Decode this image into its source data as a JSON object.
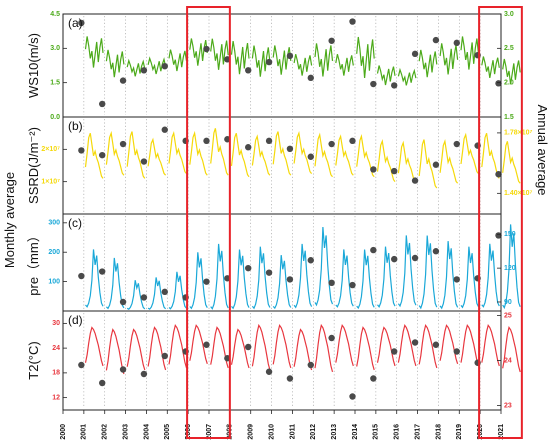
{
  "figure": {
    "left_label": "Monthly average",
    "right_label": "Annual average"
  },
  "chart_data": {
    "type": "line",
    "x_axis": {
      "ticks": [
        "2000",
        "2001",
        "2002",
        "2003",
        "2004",
        "2005",
        "2006",
        "2007",
        "2008",
        "2009",
        "2010",
        "2011",
        "2012",
        "2013",
        "2014",
        "2015",
        "2016",
        "2017",
        "2018",
        "2019",
        "2020",
        "2021"
      ],
      "range": [
        2000,
        2021
      ]
    },
    "highlight_years": [
      2006,
      2020
    ],
    "highlight_color": "#e8222a",
    "grid": "vertical dotted lines at each year",
    "panels": [
      {
        "label": "(a)",
        "ylabel": "WS10(m/s)",
        "color": "#4caa1a",
        "left_ticks": [
          "0.0",
          "1.5",
          "3.0",
          "4.5"
        ],
        "left_range": [
          0,
          4.5
        ],
        "right_ticks": [
          "1.5",
          "2.0",
          "2.5",
          "3.0"
        ],
        "right_range": [
          1.5,
          3.0
        ],
        "annual": [
          2.87,
          1.69,
          2.03,
          2.18,
          2.24,
          3.29,
          2.49,
          2.34,
          2.18,
          2.3,
          2.39,
          2.07,
          2.61,
          2.89,
          1.98,
          1.96,
          2.42,
          2.62,
          2.58,
          2.4,
          1.99
        ],
        "monthly_low": [
          2.0,
          1.6,
          1.7,
          1.8,
          1.9,
          2.1,
          1.9,
          1.7,
          1.6,
          1.7,
          1.7,
          1.6,
          1.7,
          1.5,
          1.3,
          1.3,
          1.6,
          1.7,
          1.9,
          1.6,
          1.3
        ],
        "monthly_high": [
          3.6,
          3.0,
          2.5,
          2.6,
          3.0,
          3.5,
          3.5,
          3.4,
          3.2,
          3.2,
          2.8,
          3.3,
          2.8,
          3.6,
          2.3,
          2.1,
          3.0,
          3.3,
          3.6,
          2.7,
          2.6
        ]
      },
      {
        "label": "(b)",
        "ylabel": "SSRD(J/m⁻²)",
        "color": "#f5d90a",
        "left_ticks": [
          "1×10⁷",
          "2×10⁷"
        ],
        "left_range": [
          0,
          30000000
        ],
        "right_ticks": [
          "1.40×10⁷",
          "1.78×10⁷"
        ],
        "right_range": [
          12700000,
          18800000
        ],
        "annual": [
          16700000,
          16400000,
          17100000,
          16000000,
          18000000,
          17300000,
          17300000,
          17400000,
          16900000,
          17300000,
          16800000,
          16300000,
          17100000,
          17300000,
          15500000,
          15400000,
          14800000,
          15800000,
          17100000,
          17000000,
          15200000
        ],
        "monthly_low": [
          11000000,
          12000000,
          11000000,
          12000000,
          12500000,
          12000000,
          12000000,
          11500000,
          12000000,
          12000000,
          12500000,
          11500000,
          12000000,
          11500000,
          10000000,
          9500000,
          8000000,
          9500000,
          12500000,
          11000000,
          9500000
        ],
        "monthly_high": [
          25000000,
          25000000,
          25500000,
          23000000,
          25000000,
          25000000,
          26500000,
          25000000,
          24000000,
          25500000,
          25000000,
          24500000,
          24000000,
          24000000,
          22500000,
          22000000,
          23000000,
          22500000,
          24500000,
          25000000,
          22500000
        ]
      },
      {
        "label": "(c)",
        "ylabel": "pre（mm）",
        "color": "#1aa8d8",
        "left_ticks": [
          "100",
          "200",
          "300"
        ],
        "left_range": [
          0,
          330
        ],
        "right_ticks": [
          "90",
          "120",
          "150"
        ],
        "right_range": [
          82,
          168
        ],
        "annual": [
          113,
          117,
          90,
          94,
          99,
          94,
          108,
          111,
          120,
          116,
          110,
          127,
          107,
          105,
          136,
          128,
          129,
          135,
          110,
          111,
          149
        ],
        "monthly_low": [
          10,
          5,
          4,
          4,
          5,
          5,
          3,
          5,
          5,
          6,
          8,
          15,
          10,
          6,
          10,
          12,
          5,
          5,
          8,
          10,
          5
        ],
        "monthly_high": [
          220,
          190,
          110,
          120,
          140,
          210,
          240,
          220,
          230,
          200,
          240,
          300,
          220,
          220,
          230,
          270,
          270,
          250,
          230,
          240,
          310
        ]
      },
      {
        "label": "(d)",
        "ylabel": "T2(°C)",
        "color": "#e8373f",
        "left_ticks": [
          "12",
          "18",
          "24",
          "30"
        ],
        "left_range": [
          9,
          33
        ],
        "right_ticks": [
          "23",
          "24",
          "25"
        ],
        "right_range": [
          22.9,
          25.1
        ],
        "annual": [
          23.9,
          23.5,
          23.8,
          23.7,
          24.1,
          24.2,
          24.35,
          24.05,
          24.3,
          23.75,
          23.6,
          23.9,
          24.5,
          23.2,
          23.6,
          24.2,
          24.4,
          24.35,
          24.2,
          23.95
        ],
        "annual_years": [
          2001,
          2002,
          2003,
          2004,
          2005,
          2006,
          2007,
          2008,
          2009,
          2010,
          2011,
          2012,
          2013,
          2014,
          2015,
          2016,
          2017,
          2018,
          2019,
          2020
        ],
        "monthly_low": [
          19.5,
          17.5,
          18.5,
          18.5,
          19,
          20,
          19,
          19,
          18.5,
          19,
          18.5,
          18,
          19.5,
          18.5,
          19.5,
          19.5,
          19,
          20,
          19.5,
          19.5,
          18
        ],
        "monthly_high": [
          29,
          28.5,
          28.5,
          29,
          29.5,
          29.5,
          29,
          28.5,
          29.5,
          29.5,
          28.5,
          29.5,
          29.5,
          29,
          29,
          29.5,
          29.5,
          29.5,
          29.5,
          29.5,
          29
        ]
      }
    ]
  }
}
